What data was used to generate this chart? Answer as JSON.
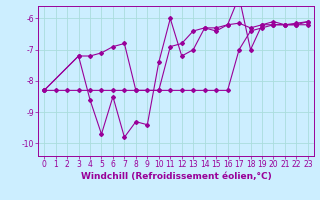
{
  "xlabel": "Windchill (Refroidissement éolien,°C)",
  "line1_x": [
    0,
    1,
    2,
    3,
    4,
    5,
    6,
    7,
    8,
    9,
    10,
    11,
    12,
    13,
    14,
    15,
    16,
    17,
    18,
    19,
    20,
    21,
    22,
    23
  ],
  "line1_y": [
    -8.3,
    -8.3,
    -8.3,
    -8.3,
    -8.3,
    -8.3,
    -8.3,
    -8.3,
    -8.3,
    -8.3,
    -8.3,
    -8.3,
    -8.3,
    -8.3,
    -8.3,
    -8.3,
    -8.3,
    -7.0,
    -6.4,
    -6.3,
    -6.2,
    -6.2,
    -6.2,
    -6.2
  ],
  "line2_x": [
    0,
    3,
    4,
    5,
    6,
    7,
    8,
    10,
    11,
    12,
    13,
    14,
    15,
    16,
    17,
    18,
    19,
    20,
    21,
    22,
    23
  ],
  "line2_y": [
    -8.3,
    -7.2,
    -7.2,
    -7.1,
    -6.9,
    -6.8,
    -8.3,
    -8.3,
    -6.9,
    -6.8,
    -6.4,
    -6.3,
    -6.3,
    -6.2,
    -6.15,
    -6.3,
    -6.2,
    -6.2,
    -6.2,
    -6.15,
    -6.1
  ],
  "line3_x": [
    0,
    3,
    4,
    5,
    6,
    7,
    8,
    9,
    10,
    11,
    12,
    13,
    14,
    15,
    16,
    17,
    18,
    19,
    20,
    21,
    22,
    23
  ],
  "line3_y": [
    -8.3,
    -7.2,
    -8.6,
    -9.7,
    -8.5,
    -9.8,
    -9.3,
    -9.4,
    -7.4,
    -6.0,
    -7.2,
    -7.0,
    -6.3,
    -6.4,
    -6.2,
    -5.3,
    -7.0,
    -6.2,
    -6.1,
    -6.2,
    -6.2,
    -6.1
  ],
  "color": "#990099",
  "bg_color": "#cceeff",
  "grid_color": "#aadddd",
  "ylim": [
    -10.4,
    -5.6
  ],
  "xlim": [
    -0.5,
    23.5
  ],
  "yticks": [
    -10,
    -9,
    -8,
    -7,
    -6
  ],
  "xticks": [
    0,
    1,
    2,
    3,
    4,
    5,
    6,
    7,
    8,
    9,
    10,
    11,
    12,
    13,
    14,
    15,
    16,
    17,
    18,
    19,
    20,
    21,
    22,
    23
  ],
  "tick_fontsize": 5.5,
  "xlabel_fontsize": 6.5
}
